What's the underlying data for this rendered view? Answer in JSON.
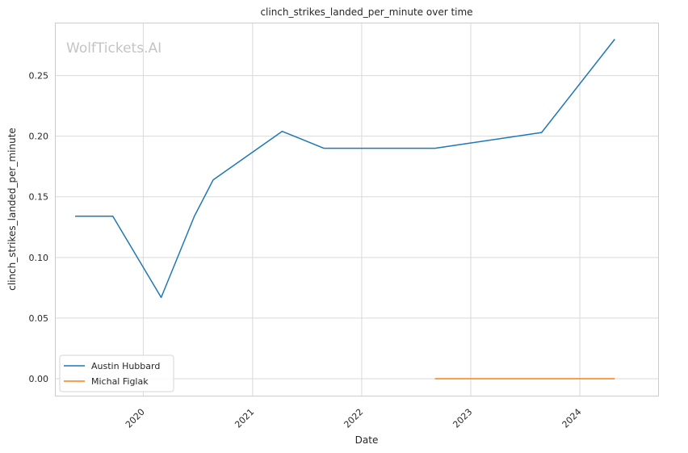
{
  "chart_data": {
    "type": "line",
    "title": "clinch_strikes_landed_per_minute over time",
    "xlabel": "Date",
    "ylabel": "clinch_strikes_landed_per_minute",
    "watermark": "WolfTickets.AI",
    "x_ticks": [
      "2020",
      "2021",
      "2022",
      "2023",
      "2024"
    ],
    "y_ticks": [
      "0.00",
      "0.05",
      "0.10",
      "0.15",
      "0.20",
      "0.25"
    ],
    "xlim": [
      "2019-03-14",
      "2024-09-19"
    ],
    "ylim": [
      -0.014,
      0.293
    ],
    "grid": true,
    "legend_position": "lower-left",
    "series": [
      {
        "name": "Austin Hubbard",
        "color": "#1f77b4",
        "points": [
          {
            "x": "2019-05-18",
            "y": 0.134
          },
          {
            "x": "2019-09-21",
            "y": 0.134
          },
          {
            "x": "2020-03-01",
            "y": 0.067
          },
          {
            "x": "2020-06-20",
            "y": 0.134
          },
          {
            "x": "2020-08-22",
            "y": 0.164
          },
          {
            "x": "2021-04-10",
            "y": 0.204
          },
          {
            "x": "2021-08-28",
            "y": 0.19
          },
          {
            "x": "2022-09-03",
            "y": 0.19
          },
          {
            "x": "2023-08-26",
            "y": 0.203
          },
          {
            "x": "2024-04-27",
            "y": 0.28
          }
        ]
      },
      {
        "name": "Michal Figlak",
        "color": "#ff7f0e",
        "points": [
          {
            "x": "2022-09-03",
            "y": 0.0
          },
          {
            "x": "2024-04-27",
            "y": 0.0
          }
        ]
      }
    ]
  }
}
